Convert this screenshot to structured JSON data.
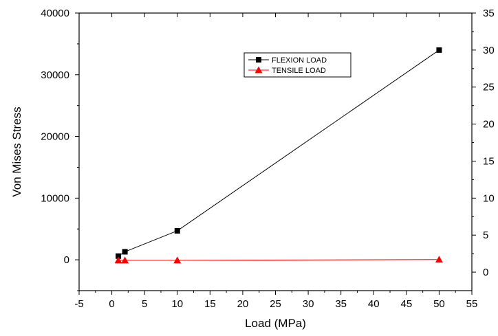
{
  "chart_data": {
    "type": "line",
    "xlabel": "Load (MPa)",
    "ylabel": "Von Mises Stress",
    "xlim": [
      -5,
      55
    ],
    "ylim": [
      -5000,
      40000
    ],
    "y2lim": [
      -2.5,
      35
    ],
    "x_ticks": [
      "-5",
      "0",
      "5",
      "10",
      "15",
      "20",
      "25",
      "30",
      "35",
      "40",
      "45",
      "50",
      "55"
    ],
    "y_ticks": [
      "0",
      "10000",
      "20000",
      "30000",
      "40000"
    ],
    "y2_ticks": [
      "0",
      "5",
      "10",
      "15",
      "20",
      "25",
      "30",
      "35"
    ],
    "grid": false,
    "legend_position": "top-right",
    "series": [
      {
        "name": "FLEXION LOAD",
        "axis": "left",
        "color": "#000000",
        "marker": "square",
        "x": [
          1,
          2,
          10,
          50
        ],
        "y": [
          600,
          1300,
          4700,
          34000
        ]
      },
      {
        "name": "TENSILE LOAD",
        "axis": "right",
        "color": "#ff0000",
        "marker": "triangle",
        "x": [
          1,
          2,
          10,
          50
        ],
        "y": [
          1.6,
          1.6,
          1.6,
          1.7
        ]
      }
    ]
  }
}
